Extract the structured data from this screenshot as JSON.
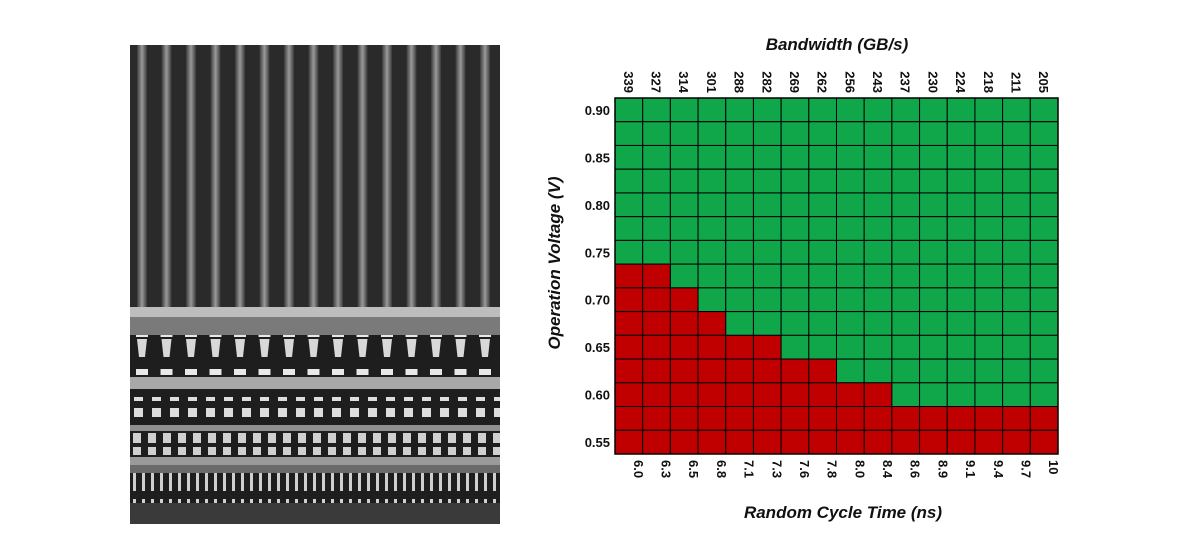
{
  "figure": {
    "micrograph": {
      "description_icon": "sram-cross-section-micrograph-icon"
    }
  },
  "chart_data": {
    "type": "heatmap",
    "title": "",
    "xlabel": "Random Cycle Time (ns)",
    "x2label": "Bandwidth (GB/s)",
    "ylabel": "Operation Voltage (V)",
    "x_ticks": [
      "6.0",
      "6.3",
      "6.5",
      "6.8",
      "7.1",
      "7.3",
      "7.6",
      "7.8",
      "8.0",
      "8.4",
      "8.6",
      "8.9",
      "9.1",
      "9.4",
      "9.7",
      "10"
    ],
    "x2_ticks": [
      "339",
      "327",
      "314",
      "301",
      "288",
      "282",
      "269",
      "262",
      "256",
      "243",
      "237",
      "230",
      "224",
      "218",
      "211",
      "205"
    ],
    "y_ticks": [
      "0.90",
      "0.85",
      "0.80",
      "0.75",
      "0.70",
      "0.65",
      "0.60",
      "0.55"
    ],
    "rows": 15,
    "cols": 16,
    "y_range": [
      0.55,
      0.9
    ],
    "fail_color": "#c00000",
    "pass_color": "#10a64a",
    "grid": true,
    "fail_rows_per_column": [
      8,
      8,
      7,
      6,
      5,
      5,
      4,
      4,
      3,
      3,
      2,
      2,
      2,
      2,
      2,
      2
    ]
  }
}
